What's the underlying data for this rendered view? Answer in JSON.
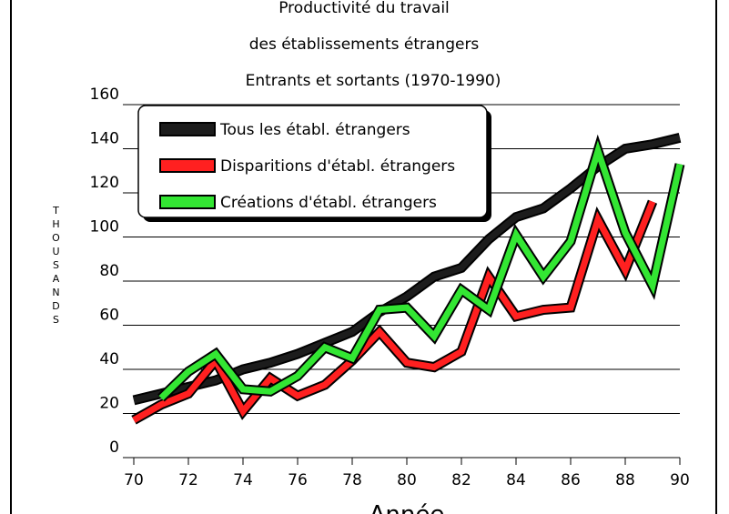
{
  "chart_data": {
    "type": "line",
    "title": [
      "Productivité du travail",
      "des établissements étrangers",
      "Entrants et sortants (1970-1990)"
    ],
    "x_label": "Année",
    "y_label": "THOUSANDS",
    "x": [
      70,
      71,
      72,
      73,
      74,
      75,
      76,
      77,
      78,
      79,
      80,
      81,
      82,
      83,
      84,
      85,
      86,
      87,
      88,
      89,
      90
    ],
    "series": [
      {
        "name": "Tous les établ. étrangers",
        "color": "#1c1c1c",
        "values": [
          26,
          29,
          32,
          35,
          40,
          43,
          47,
          52,
          57,
          66,
          73,
          82,
          86,
          99,
          109,
          113,
          122,
          132,
          140,
          142,
          145
        ]
      },
      {
        "name": "Disparitions d'établ. étrangers",
        "color": "#ff2020",
        "values": [
          17,
          24,
          29,
          44,
          21,
          36,
          28,
          33,
          44,
          57,
          43,
          41,
          48,
          82,
          64,
          67,
          68,
          108,
          85,
          116,
          null
        ]
      },
      {
        "name": "Créations d'établ. étrangers",
        "color": "#33e633",
        "values": [
          null,
          27,
          39,
          47,
          31,
          30,
          37,
          50,
          45,
          67,
          68,
          55,
          76,
          67,
          101,
          82,
          98,
          139,
          102,
          78,
          133
        ]
      }
    ],
    "xlim": [
      70,
      90
    ],
    "xticks": [
      70,
      72,
      74,
      76,
      78,
      80,
      82,
      84,
      86,
      88,
      90
    ],
    "ylim": [
      0,
      160
    ],
    "yticks": [
      0,
      20,
      40,
      60,
      80,
      100,
      120,
      140,
      160
    ],
    "grid": true,
    "legend": "top-left"
  }
}
